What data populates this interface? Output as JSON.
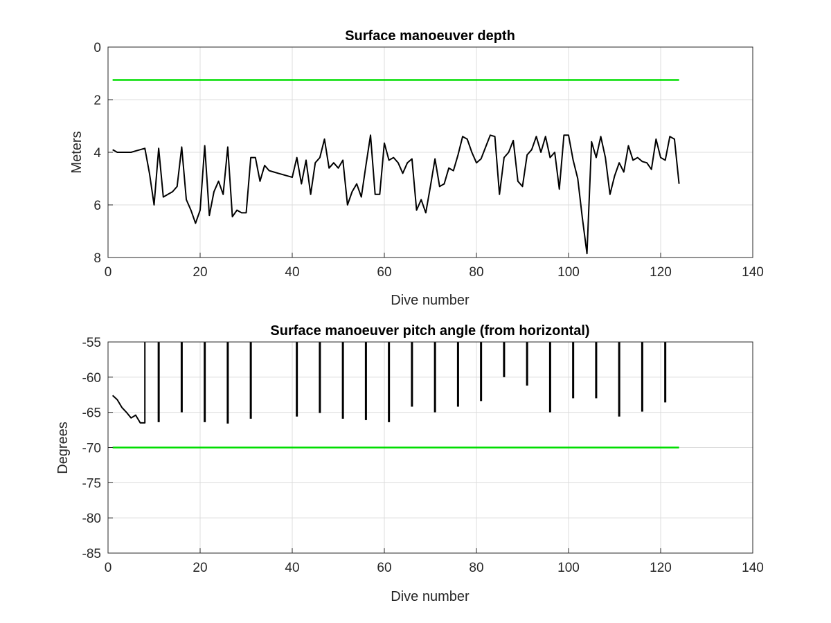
{
  "chart_data": [
    {
      "type": "line",
      "title": "Surface manoeuver depth",
      "xlabel": "Dive number",
      "ylabel": "Meters",
      "xlim": [
        0,
        140
      ],
      "ylim": [
        0,
        8
      ],
      "y_reversed": true,
      "grid": true,
      "xticks": [
        "0",
        "20",
        "40",
        "60",
        "80",
        "100",
        "120",
        "140"
      ],
      "yticks": [
        "0",
        "2",
        "4",
        "6",
        "8"
      ],
      "series": [
        {
          "color": "#000000",
          "x": [
            1,
            2,
            3,
            4,
            5,
            6,
            7,
            8,
            9,
            10,
            11,
            12,
            13,
            14,
            15,
            16,
            17,
            18,
            19,
            20,
            21,
            22,
            23,
            24,
            25,
            26,
            27,
            28,
            29,
            30,
            31,
            32,
            33,
            34,
            35,
            36,
            37,
            38,
            39,
            40,
            41,
            42,
            43,
            44,
            45,
            46,
            47,
            48,
            49,
            50,
            51,
            52,
            53,
            54,
            55,
            56,
            57,
            58,
            59,
            60,
            61,
            62,
            63,
            64,
            65,
            66,
            67,
            68,
            69,
            70,
            71,
            72,
            73,
            74,
            75,
            76,
            77,
            78,
            79,
            80,
            81,
            82,
            83,
            84,
            85,
            86,
            87,
            88,
            89,
            90,
            91,
            92,
            93,
            94,
            95,
            96,
            97,
            98,
            99,
            100,
            101,
            102,
            103,
            104,
            105,
            106,
            107,
            108,
            109,
            110,
            111,
            112,
            113,
            114,
            115,
            116,
            117,
            118,
            119,
            120,
            121,
            122,
            123,
            124
          ],
          "y": [
            3.9,
            4.0,
            4.0,
            4.0,
            4.0,
            3.95,
            3.9,
            3.85,
            4.8,
            6.0,
            3.85,
            5.7,
            5.6,
            5.5,
            5.3,
            3.8,
            5.8,
            6.2,
            6.7,
            6.2,
            3.75,
            6.4,
            5.5,
            5.1,
            5.6,
            3.8,
            6.45,
            6.2,
            6.3,
            6.3,
            4.2,
            4.2,
            5.1,
            4.5,
            4.7,
            4.75,
            4.8,
            4.85,
            4.9,
            4.95,
            4.2,
            5.2,
            4.3,
            5.6,
            4.4,
            4.2,
            3.5,
            4.6,
            4.4,
            4.6,
            4.3,
            6.0,
            5.5,
            5.2,
            5.7,
            4.5,
            3.35,
            5.6,
            5.6,
            3.65,
            4.3,
            4.2,
            4.4,
            4.8,
            4.4,
            4.25,
            6.2,
            5.8,
            6.3,
            5.3,
            4.25,
            5.3,
            5.2,
            4.6,
            4.7,
            4.1,
            3.4,
            3.5,
            4.0,
            4.4,
            4.25,
            3.8,
            3.35,
            3.4,
            5.6,
            4.2,
            4.0,
            3.55,
            5.1,
            5.3,
            4.1,
            3.9,
            3.4,
            4.0,
            3.4,
            4.2,
            4.0,
            5.4,
            3.35,
            3.35,
            4.3,
            5.0,
            6.5,
            7.85,
            3.6,
            4.2,
            3.4,
            4.2,
            5.6,
            4.9,
            4.4,
            4.75,
            3.75,
            4.3,
            4.2,
            4.35,
            4.4,
            4.65,
            3.5,
            4.2,
            4.3,
            3.4,
            3.5,
            5.2
          ]
        },
        {
          "color": "#00dd00",
          "x": [
            1,
            124
          ],
          "y": [
            1.25,
            1.25
          ]
        }
      ]
    },
    {
      "type": "line",
      "title": "Surface manoeuver pitch angle (from horizontal)",
      "xlabel": "Dive number",
      "ylabel": "Degrees",
      "xlim": [
        0,
        140
      ],
      "ylim": [
        -85,
        -55
      ],
      "grid": true,
      "xticks": [
        "0",
        "20",
        "40",
        "60",
        "80",
        "100",
        "120",
        "140"
      ],
      "yticks": [
        "-55",
        "-60",
        "-65",
        "-70",
        "-75",
        "-80",
        "-85"
      ],
      "series": [
        {
          "color": "#000000",
          "x": [
            1,
            2,
            3,
            4,
            5,
            6,
            7,
            8,
            8
          ],
          "y": [
            -62.6,
            -63.2,
            -64.3,
            -65.0,
            -65.8,
            -65.4,
            -66.5,
            -66.5,
            -55
          ]
        },
        {
          "color": "#000000",
          "x": [
            11,
            16,
            21,
            26,
            31,
            41,
            46,
            51,
            56,
            61,
            66,
            71,
            76,
            81,
            86,
            91,
            96,
            101,
            106,
            111,
            116,
            121
          ],
          "y": [
            -66.4,
            -65.0,
            -66.4,
            -66.6,
            -65.9,
            -65.6,
            -65.1,
            -65.9,
            -66.1,
            -66.4,
            -64.2,
            -65.0,
            -64.2,
            -63.4,
            -60.0,
            -61.2,
            -65.0,
            -63.0,
            -63.0,
            -65.6,
            -64.9,
            -63.6
          ]
        },
        {
          "color": "#00dd00",
          "x": [
            1,
            124
          ],
          "y": [
            -70,
            -70
          ]
        }
      ]
    }
  ]
}
